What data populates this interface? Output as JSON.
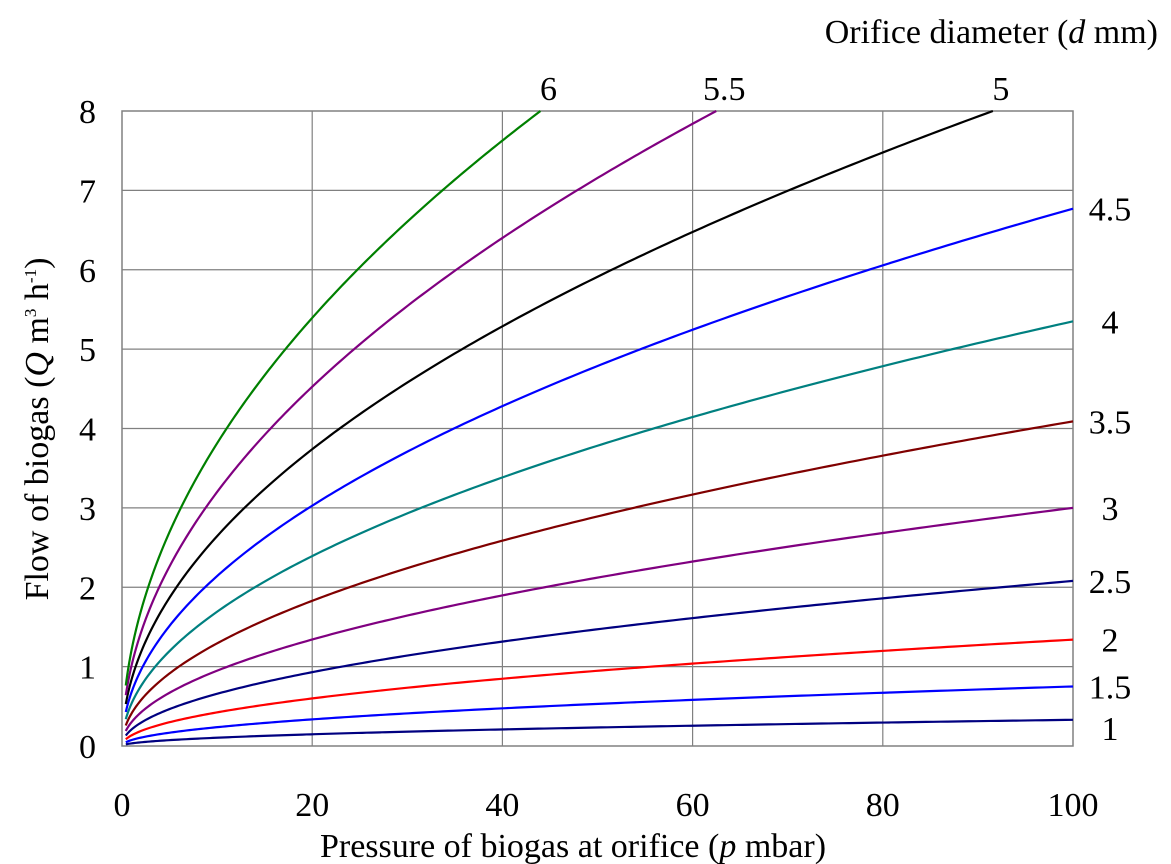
{
  "chart_data": {
    "type": "line",
    "title": "",
    "xlabel": {
      "prefix": "Pressure of biogas at orifice (",
      "var": "p",
      "suffix": "  mbar)"
    },
    "ylabel": {
      "prefix": "Flow of biogas (",
      "var": "Q",
      "unit": " m",
      "sup1": "3",
      "mid": " h",
      "sup2": "-1",
      "suffix": ")"
    },
    "legend_title": {
      "prefix": "Orifice diameter (",
      "var": "d",
      "suffix": " mm)"
    },
    "xlim": [
      0,
      100
    ],
    "ylim": [
      0,
      8
    ],
    "x_ticks": [
      "0",
      "20",
      "40",
      "60",
      "80",
      "100"
    ],
    "y_ticks": [
      "0",
      "1",
      "2",
      "3",
      "4",
      "5",
      "6",
      "7",
      "8"
    ],
    "grid": true,
    "model": "Q = k * sqrt(p)",
    "series": [
      {
        "name": "1",
        "color": "#000080",
        "k": 0.033
      },
      {
        "name": "1.5",
        "color": "#0000ff",
        "k": 0.075
      },
      {
        "name": "2",
        "color": "#ff0000",
        "k": 0.134
      },
      {
        "name": "2.5",
        "color": "#000080",
        "k": 0.208
      },
      {
        "name": "3",
        "color": "#800080",
        "k": 0.3
      },
      {
        "name": "3.5",
        "color": "#800000",
        "k": 0.409
      },
      {
        "name": "4",
        "color": "#008080",
        "k": 0.535
      },
      {
        "name": "4.5",
        "color": "#0000ff",
        "k": 0.677
      },
      {
        "name": "5",
        "color": "#000000",
        "k": 0.836
      },
      {
        "name": "5.5",
        "color": "#800080",
        "k": 1.012
      },
      {
        "name": "6",
        "color": "#008000",
        "k": 1.206
      }
    ]
  }
}
